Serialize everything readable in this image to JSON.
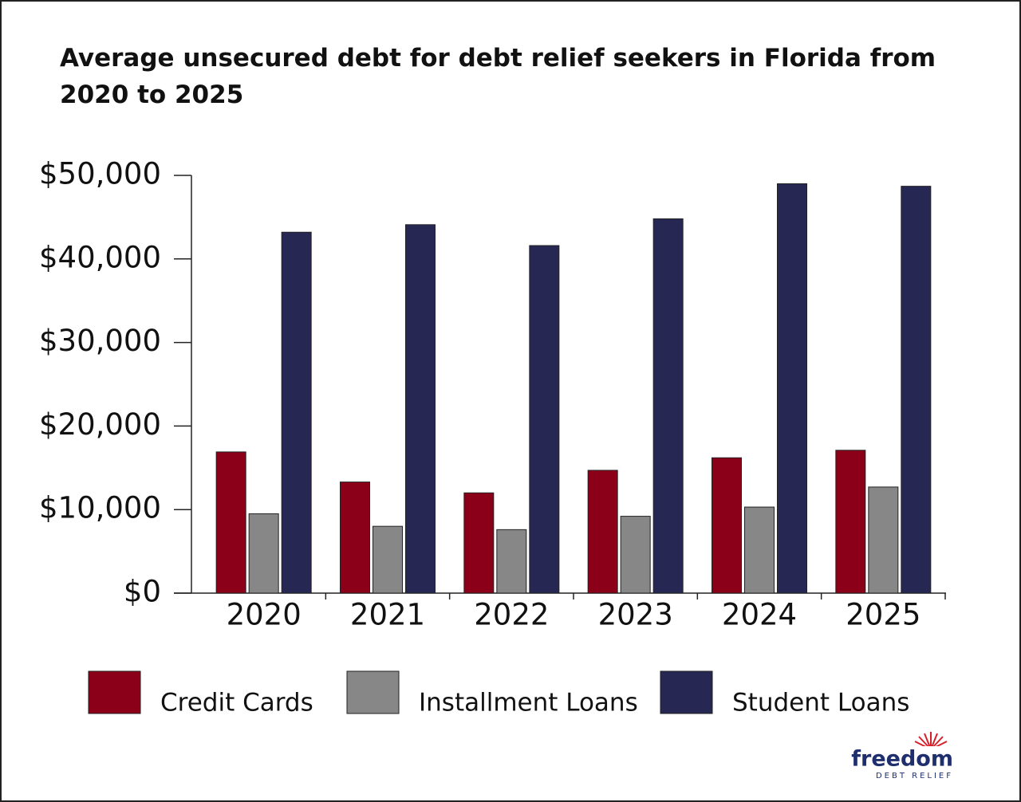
{
  "chart_data": {
    "type": "bar",
    "title": "Average unsecured debt for debt relief seekers in Florida from 2020 to 2025",
    "categories": [
      "2020",
      "2021",
      "2022",
      "2023",
      "2024",
      "2025"
    ],
    "series": [
      {
        "name": "Credit Cards",
        "color": "#8b0018",
        "values": [
          16900,
          13300,
          12000,
          14700,
          16200,
          17100
        ]
      },
      {
        "name": "Installment Loans",
        "color": "#878787",
        "values": [
          9500,
          8000,
          7600,
          9200,
          10300,
          12700
        ]
      },
      {
        "name": "Student Loans",
        "color": "#272754",
        "values": [
          43200,
          44100,
          41600,
          44800,
          49000,
          48700
        ]
      }
    ],
    "ylim": [
      0,
      50000
    ],
    "yticks": [
      {
        "value": 0,
        "label": "$0"
      },
      {
        "value": 10000,
        "label": "$10,000"
      },
      {
        "value": 20000,
        "label": "$20,000"
      },
      {
        "value": 30000,
        "label": "$30,000"
      },
      {
        "value": 40000,
        "label": "$40,000"
      },
      {
        "value": 50000,
        "label": "$50,000"
      }
    ],
    "grid": false,
    "legend": "bottom"
  },
  "logo": {
    "name": "freedom",
    "tagline": "DEBT RELIEF"
  }
}
